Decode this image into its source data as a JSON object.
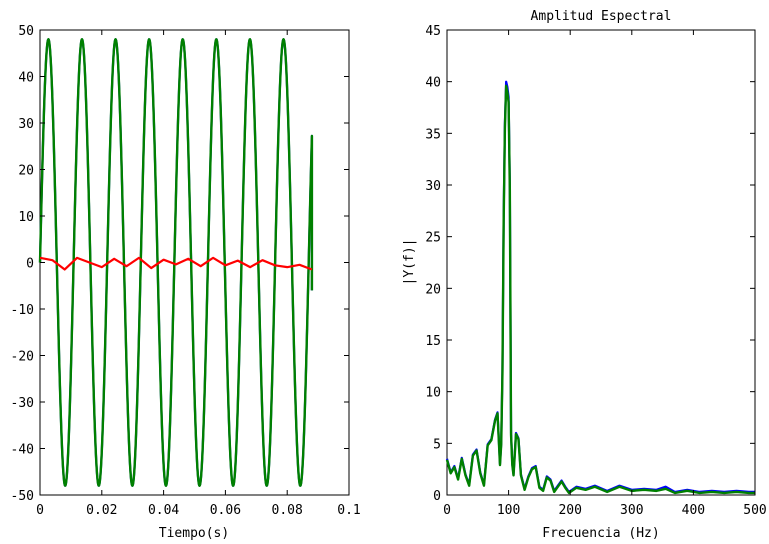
{
  "chart_data": [
    {
      "type": "line",
      "title": "",
      "xlabel": "Tiempo(s)",
      "ylabel": "",
      "xlim": [
        0,
        0.1
      ],
      "ylim": [
        -50,
        50
      ],
      "x_ticks": [
        "0",
        "0.02",
        "0.04",
        "0.06",
        "0.08",
        "0.1"
      ],
      "x_tick_values": [
        0,
        0.02,
        0.04,
        0.06,
        0.08,
        0.1
      ],
      "y_ticks": [
        "-50",
        "-40",
        "-30",
        "-20",
        "-10",
        "0",
        "10",
        "20",
        "30",
        "40",
        "50"
      ],
      "y_tick_values": [
        -50,
        -40,
        -30,
        -20,
        -10,
        0,
        10,
        20,
        30,
        40,
        50
      ],
      "grid": false,
      "series": [
        {
          "color": "#0000ff",
          "signal": "sine",
          "x_range": [
            0,
            0.088
          ],
          "amplitude": 48,
          "frequency_hz": 92,
          "end_value": -6
        },
        {
          "color": "#008000",
          "signal": "sine",
          "x_range": [
            0,
            0.088
          ],
          "amplitude": 48,
          "frequency_hz": 92,
          "end_value": -6
        },
        {
          "color": "#ff0000",
          "signal": "noise",
          "x": [
            0,
            0.004,
            0.008,
            0.012,
            0.016,
            0.02,
            0.024,
            0.028,
            0.032,
            0.036,
            0.04,
            0.044,
            0.048,
            0.052,
            0.056,
            0.06,
            0.064,
            0.068,
            0.072,
            0.076,
            0.08,
            0.084,
            0.088
          ],
          "y": [
            1,
            0.5,
            -1.5,
            1,
            0,
            -1,
            0.8,
            -0.8,
            1,
            -1.2,
            0.6,
            -0.4,
            0.8,
            -0.8,
            1,
            -0.6,
            0.4,
            -1,
            0.5,
            -0.6,
            -1,
            -0.5,
            -1.5
          ]
        }
      ]
    },
    {
      "type": "line",
      "title": "Amplitud Espectral",
      "xlabel": "Frecuencia (Hz)",
      "ylabel": "|Y(f)|",
      "xlim": [
        0,
        500
      ],
      "ylim": [
        0,
        45
      ],
      "x_ticks": [
        "0",
        "100",
        "200",
        "300",
        "400",
        "500"
      ],
      "x_tick_values": [
        0,
        100,
        200,
        300,
        400,
        500
      ],
      "y_ticks": [
        "0",
        "5",
        "10",
        "15",
        "20",
        "25",
        "30",
        "35",
        "40",
        "45"
      ],
      "y_tick_values": [
        0,
        5,
        10,
        15,
        20,
        25,
        30,
        35,
        40,
        45
      ],
      "grid": false,
      "series": [
        {
          "color": "#0000ff",
          "x": [
            0,
            6,
            12,
            18,
            24,
            30,
            36,
            42,
            48,
            54,
            60,
            66,
            72,
            78,
            82,
            86,
            88,
            90,
            92,
            94,
            96,
            98,
            100,
            102,
            104,
            106,
            108,
            112,
            116,
            120,
            126,
            132,
            138,
            144,
            150,
            156,
            162,
            168,
            174,
            180,
            186,
            192,
            198,
            210,
            225,
            240,
            260,
            280,
            300,
            320,
            340,
            355,
            370,
            390,
            410,
            430,
            450,
            470,
            490,
            500
          ],
          "y": [
            3.5,
            2.2,
            2.8,
            1.6,
            3.6,
            2.0,
            1.0,
            3.9,
            4.4,
            2.2,
            1.0,
            4.9,
            5.4,
            7.3,
            8.0,
            3.0,
            5.0,
            12.0,
            27.0,
            36.0,
            40.0,
            39.5,
            38.5,
            30.0,
            6.0,
            3.0,
            2.0,
            6.0,
            5.5,
            2.0,
            0.6,
            1.8,
            2.6,
            2.8,
            0.8,
            0.5,
            1.8,
            1.5,
            0.4,
            0.9,
            1.4,
            0.8,
            0.3,
            0.8,
            0.6,
            0.9,
            0.4,
            0.9,
            0.5,
            0.6,
            0.5,
            0.8,
            0.3,
            0.5,
            0.3,
            0.4,
            0.3,
            0.4,
            0.3,
            0.3
          ]
        },
        {
          "color": "#008000",
          "x": [
            0,
            6,
            12,
            18,
            24,
            30,
            36,
            42,
            48,
            54,
            60,
            66,
            72,
            78,
            82,
            86,
            88,
            90,
            92,
            94,
            96,
            98,
            100,
            102,
            104,
            106,
            108,
            112,
            116,
            120,
            126,
            132,
            138,
            144,
            150,
            156,
            162,
            168,
            174,
            180,
            186,
            192,
            198,
            210,
            225,
            240,
            260,
            280,
            300,
            320,
            340,
            355,
            370,
            390,
            410,
            430,
            450,
            470,
            490,
            500
          ],
          "y": [
            3.4,
            2.1,
            2.7,
            1.5,
            3.5,
            1.9,
            0.9,
            3.8,
            4.3,
            2.1,
            0.9,
            4.8,
            5.3,
            7.2,
            7.9,
            2.9,
            4.9,
            11.8,
            26.5,
            35.5,
            39.6,
            39.0,
            38.0,
            29.5,
            5.8,
            2.9,
            1.9,
            5.9,
            5.4,
            1.9,
            0.5,
            1.7,
            2.5,
            2.7,
            0.7,
            0.4,
            1.7,
            1.4,
            0.3,
            0.8,
            1.3,
            0.7,
            0.2,
            0.7,
            0.5,
            0.8,
            0.3,
            0.8,
            0.4,
            0.5,
            0.4,
            0.6,
            0.2,
            0.4,
            0.2,
            0.3,
            0.2,
            0.3,
            0.2,
            0.2
          ]
        }
      ]
    }
  ]
}
